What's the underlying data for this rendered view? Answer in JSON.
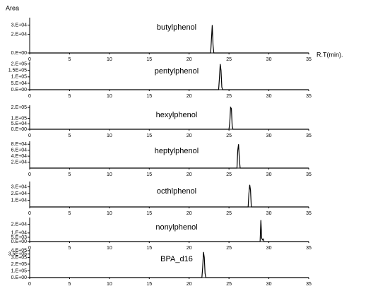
{
  "chart_data": [
    {
      "type": "line",
      "title": "butylphenol",
      "y_label": "Area",
      "x_label": "R.T(min).",
      "color": "#000000",
      "x": [
        0,
        22.7,
        22.8,
        22.9,
        23.0,
        23.1,
        35
      ],
      "values": [
        0,
        0,
        15000,
        30000,
        8000,
        0,
        0
      ],
      "xlim": [
        0,
        35
      ],
      "xticks": [
        0,
        5,
        10,
        15,
        20,
        25,
        30,
        35
      ],
      "ylim": [
        0,
        38000
      ],
      "yticks": [
        {
          "value": 0,
          "label": "0.E+00"
        },
        {
          "value": 20000,
          "label": "2.E+04"
        },
        {
          "value": 30000,
          "label": "3.E+04"
        }
      ]
    },
    {
      "type": "line",
      "title": "pentylphenol",
      "color": "#000000",
      "x": [
        0,
        23.7,
        23.8,
        23.9,
        24.0,
        24.1,
        24.2,
        35
      ],
      "values": [
        0,
        0,
        90000,
        200000,
        150000,
        20000,
        0,
        0
      ],
      "xlim": [
        0,
        35
      ],
      "xticks": [
        0,
        5,
        10,
        15,
        20,
        25,
        30,
        35
      ],
      "ylim": [
        0,
        220000
      ],
      "yticks": [
        {
          "value": 0,
          "label": "0.E+00"
        },
        {
          "value": 50000,
          "label": "5.E+04"
        },
        {
          "value": 100000,
          "label": "1.E+05"
        },
        {
          "value": 150000,
          "label": "1.5E+05"
        },
        {
          "value": 200000,
          "label": "2.E+05"
        }
      ]
    },
    {
      "type": "line",
      "title": "hexylphenol",
      "color": "#000000",
      "x": [
        0,
        25.0,
        25.1,
        25.2,
        25.3,
        25.4,
        25.5,
        35
      ],
      "values": [
        0,
        0,
        60000,
        200000,
        190000,
        30000,
        0,
        0
      ],
      "xlim": [
        0,
        35
      ],
      "xticks": [
        0,
        5,
        10,
        15,
        20,
        25,
        30,
        35
      ],
      "ylim": [
        0,
        220000
      ],
      "yticks": [
        {
          "value": 0,
          "label": "0.E+00"
        },
        {
          "value": 50000,
          "label": "5.E+04"
        },
        {
          "value": 100000,
          "label": "1.E+05"
        },
        {
          "value": 200000,
          "label": "2.E+05"
        }
      ]
    },
    {
      "type": "line",
      "title": "heptylphenol",
      "color": "#000000",
      "x": [
        0,
        26.0,
        26.1,
        26.2,
        26.3,
        26.4,
        35
      ],
      "values": [
        0,
        0,
        60000,
        80000,
        30000,
        0,
        0
      ],
      "xlim": [
        0,
        35
      ],
      "xticks": [
        0,
        5,
        10,
        15,
        20,
        25,
        30,
        35
      ],
      "ylim": [
        0,
        90000
      ],
      "yticks": [
        {
          "value": 20000,
          "label": "2.E+04"
        },
        {
          "value": 40000,
          "label": "4.E+04"
        },
        {
          "value": 60000,
          "label": "6.E+04"
        },
        {
          "value": 80000,
          "label": "8.E+04"
        }
      ]
    },
    {
      "type": "line",
      "title": "octhlphenol",
      "color": "#000000",
      "x": [
        0,
        27.4,
        27.5,
        27.6,
        27.7,
        27.8,
        35
      ],
      "values": [
        0,
        0,
        20000,
        33000,
        25000,
        0,
        0
      ],
      "xlim": [
        0,
        35
      ],
      "xticks": [
        0,
        5,
        10,
        15,
        20,
        25,
        30,
        35
      ],
      "ylim": [
        0,
        38000
      ],
      "yticks": [
        {
          "value": 10000,
          "label": "1.E+04"
        },
        {
          "value": 20000,
          "label": "2.E+04"
        },
        {
          "value": 30000,
          "label": "3.E+04"
        }
      ]
    },
    {
      "type": "line",
      "title": "nonylphenol",
      "color": "#000000",
      "x": [
        0,
        28.9,
        29.0,
        29.1,
        29.2,
        29.3,
        29.4,
        35
      ],
      "values": [
        0,
        0,
        25000,
        4000,
        2000,
        3000,
        0,
        0
      ],
      "xlim": [
        0,
        35
      ],
      "xticks": [
        0,
        5,
        10,
        15,
        20,
        25,
        30,
        35
      ],
      "ylim": [
        0,
        28000
      ],
      "yticks": [
        {
          "value": 0,
          "label": "0.E+00"
        },
        {
          "value": 5000,
          "label": "5.E+03"
        },
        {
          "value": 10000,
          "label": "1.E+04"
        },
        {
          "value": 20000,
          "label": "2.E+04"
        }
      ]
    },
    {
      "type": "line",
      "title": "BPA_d16",
      "color": "#000000",
      "x": [
        0,
        21.6,
        21.7,
        21.8,
        21.9,
        22.0,
        22.1,
        35
      ],
      "values": [
        0,
        0,
        150000,
        380000,
        300000,
        60000,
        0,
        0
      ],
      "xlim": [
        0,
        35
      ],
      "xticks": [
        0,
        5,
        10,
        15,
        20,
        25,
        30,
        35
      ],
      "ylim": [
        0,
        420000
      ],
      "yticks": [
        {
          "value": 0,
          "label": "0.E+00"
        },
        {
          "value": 100000,
          "label": "1.E+05"
        },
        {
          "value": 200000,
          "label": "2.E+05"
        },
        {
          "value": 300000,
          "label": "3.E+05"
        },
        {
          "value": 350000,
          "label": "3.5E+05"
        },
        {
          "value": 400000,
          "label": "4.E+05"
        }
      ]
    }
  ]
}
